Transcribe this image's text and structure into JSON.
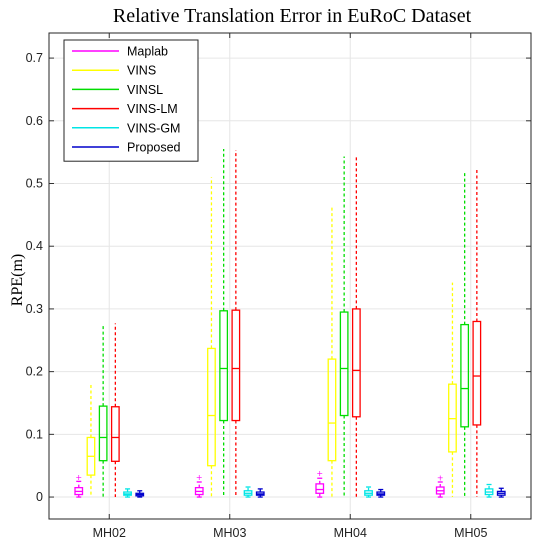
{
  "chart_data": {
    "type": "box",
    "title": "Relative Translation Error in EuRoC Dataset",
    "xlabel": "",
    "ylabel": "RPE(m)",
    "ylim": [
      -0.035,
      0.74
    ],
    "yticks": [
      0,
      0.1,
      0.2,
      0.3,
      0.4,
      0.5,
      0.6,
      0.7
    ],
    "ytick_labels": [
      "0",
      "0.1",
      "0.2",
      "0.3",
      "0.4",
      "0.5",
      "0.6",
      "0.7"
    ],
    "categories": [
      "MH02",
      "MH03",
      "MH04",
      "MH05"
    ],
    "grid": true,
    "legend_position": "top-left",
    "series": [
      {
        "name": "Maplab",
        "color": "#ff00ff",
        "boxes": [
          {
            "whisker_low": 0.0,
            "q1": 0.004,
            "median": 0.009,
            "q3": 0.015,
            "whisker_high": 0.025,
            "outlier": 0.032
          },
          {
            "whisker_low": 0.0,
            "q1": 0.004,
            "median": 0.009,
            "q3": 0.015,
            "whisker_high": 0.024,
            "outlier": 0.032
          },
          {
            "whisker_low": 0.0,
            "q1": 0.006,
            "median": 0.012,
            "q3": 0.021,
            "whisker_high": 0.03,
            "outlier": 0.038
          },
          {
            "whisker_low": 0.0,
            "q1": 0.005,
            "median": 0.01,
            "q3": 0.016,
            "whisker_high": 0.024,
            "outlier": 0.031
          }
        ]
      },
      {
        "name": "VINS",
        "color": "#ffff00",
        "boxes": [
          {
            "whisker_low": 0.0,
            "q1": 0.035,
            "median": 0.065,
            "q3": 0.095,
            "whisker_high": 0.18
          },
          {
            "whisker_low": 0.0,
            "q1": 0.05,
            "median": 0.13,
            "q3": 0.237,
            "whisker_high": 0.51
          },
          {
            "whisker_low": 0.0,
            "q1": 0.058,
            "median": 0.118,
            "q3": 0.22,
            "whisker_high": 0.462
          },
          {
            "whisker_low": 0.0,
            "q1": 0.072,
            "median": 0.125,
            "q3": 0.18,
            "whisker_high": 0.342
          }
        ]
      },
      {
        "name": "VINSL",
        "color": "#00dd00",
        "boxes": [
          {
            "whisker_low": 0.0,
            "q1": 0.058,
            "median": 0.095,
            "q3": 0.145,
            "whisker_high": 0.275
          },
          {
            "whisker_low": 0.0,
            "q1": 0.122,
            "median": 0.205,
            "q3": 0.297,
            "whisker_high": 0.555
          },
          {
            "whisker_low": 0.0,
            "q1": 0.13,
            "median": 0.205,
            "q3": 0.295,
            "whisker_high": 0.543
          },
          {
            "whisker_low": 0.0,
            "q1": 0.112,
            "median": 0.173,
            "q3": 0.275,
            "whisker_high": 0.518
          }
        ]
      },
      {
        "name": "VINS-LM",
        "color": "#ff0000",
        "boxes": [
          {
            "whisker_low": 0.0,
            "q1": 0.057,
            "median": 0.095,
            "q3": 0.144,
            "whisker_high": 0.277
          },
          {
            "whisker_low": 0.0,
            "q1": 0.122,
            "median": 0.205,
            "q3": 0.298,
            "whisker_high": 0.553
          },
          {
            "whisker_low": 0.0,
            "q1": 0.128,
            "median": 0.202,
            "q3": 0.3,
            "whisker_high": 0.545
          },
          {
            "whisker_low": 0.0,
            "q1": 0.115,
            "median": 0.193,
            "q3": 0.28,
            "whisker_high": 0.525
          }
        ]
      },
      {
        "name": "VINS-GM",
        "color": "#00e5e5",
        "boxes": [
          {
            "whisker_low": 0.0,
            "q1": 0.003,
            "median": 0.005,
            "q3": 0.008,
            "whisker_high": 0.013
          },
          {
            "whisker_low": 0.0,
            "q1": 0.003,
            "median": 0.006,
            "q3": 0.01,
            "whisker_high": 0.016
          },
          {
            "whisker_low": 0.0,
            "q1": 0.003,
            "median": 0.006,
            "q3": 0.01,
            "whisker_high": 0.016
          },
          {
            "whisker_low": 0.0,
            "q1": 0.004,
            "median": 0.008,
            "q3": 0.013,
            "whisker_high": 0.02
          }
        ]
      },
      {
        "name": "Proposed",
        "color": "#0000cc",
        "boxes": [
          {
            "whisker_low": 0.0,
            "q1": 0.002,
            "median": 0.004,
            "q3": 0.006,
            "whisker_high": 0.01
          },
          {
            "whisker_low": 0.0,
            "q1": 0.003,
            "median": 0.005,
            "q3": 0.008,
            "whisker_high": 0.013
          },
          {
            "whisker_low": 0.0,
            "q1": 0.003,
            "median": 0.005,
            "q3": 0.008,
            "whisker_high": 0.012
          },
          {
            "whisker_low": 0.0,
            "q1": 0.003,
            "median": 0.006,
            "q3": 0.009,
            "whisker_high": 0.014
          }
        ]
      }
    ]
  }
}
